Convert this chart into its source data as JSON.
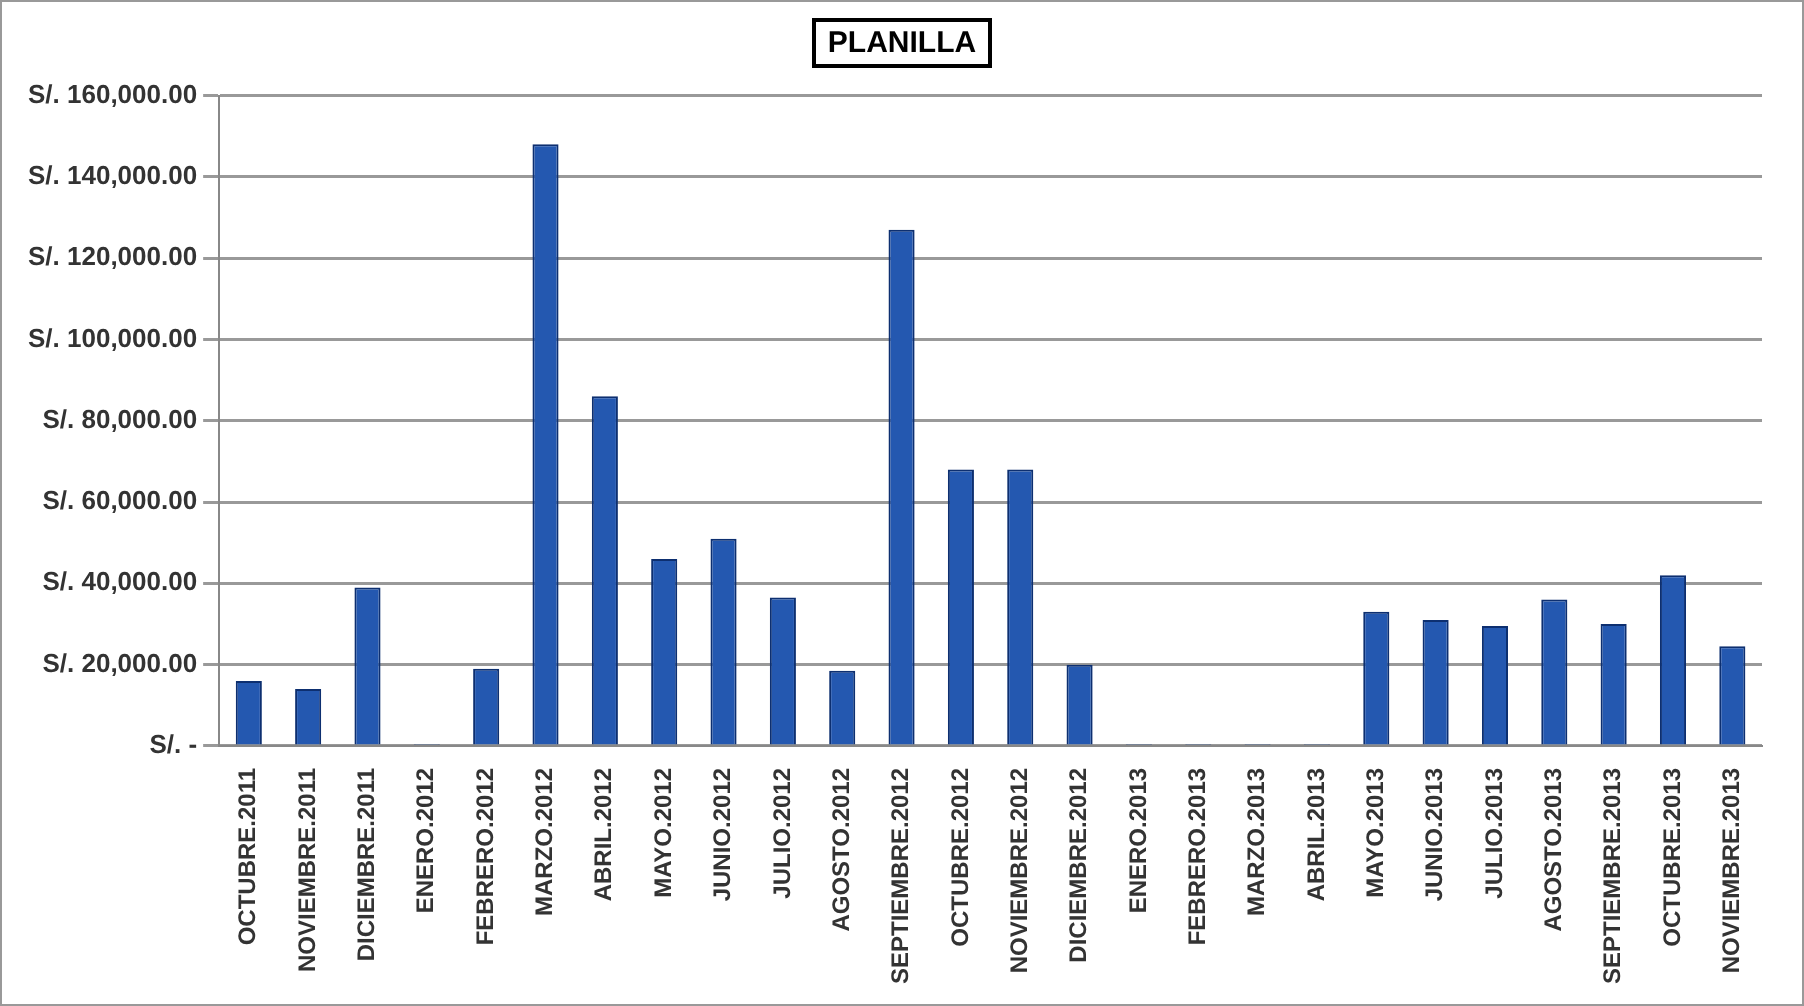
{
  "chart_data": {
    "type": "bar",
    "title": "PLANILLA",
    "categories": [
      "OCTUBRE.2011",
      "NOVIEMBRE.2011",
      "DICIEMBRE.2011",
      "ENERO.2012",
      "FEBRERO.2012",
      "MARZO.2012",
      "ABRIL.2012",
      "MAYO.2012",
      "JUNIO.2012",
      "JULIO.2012",
      "AGOSTO.2012",
      "SEPTIEMBRE.2012",
      "OCTUBRE.2012",
      "NOVIEMBRE.2012",
      "DICIEMBRE.2012",
      "ENERO.2013",
      "FEBRERO.2013",
      "MARZO.2013",
      "ABRIL.2013",
      "MAYO.2013",
      "JUNIO.2013",
      "JULIO.2013",
      "AGOSTO.2013",
      "SEPTIEMBRE.2013",
      "OCTUBRE.2013",
      "NOVIEMBRE.2013"
    ],
    "values": [
      16000,
      14000,
      39000,
      500,
      19000,
      148000,
      86000,
      46000,
      51000,
      36500,
      18500,
      127000,
      68000,
      68000,
      20000,
      500,
      500,
      500,
      500,
      33000,
      31000,
      29500,
      36000,
      30000,
      42000,
      24500
    ],
    "color": "#2458b0",
    "ylim": [
      0,
      160000
    ],
    "yticks": [
      {
        "value": 0,
        "label": "S/. -"
      },
      {
        "value": 20000,
        "label": "S/. 20,000.00"
      },
      {
        "value": 40000,
        "label": "S/. 40,000.00"
      },
      {
        "value": 60000,
        "label": "S/. 60,000.00"
      },
      {
        "value": 80000,
        "label": "S/. 80,000.00"
      },
      {
        "value": 100000,
        "label": "S/. 100,000.00"
      },
      {
        "value": 120000,
        "label": "S/. 120,000.00"
      },
      {
        "value": 140000,
        "label": "S/. 140,000.00"
      },
      {
        "value": 160000,
        "label": "S/. 160,000.00"
      }
    ],
    "grid": "y",
    "legend": false
  }
}
